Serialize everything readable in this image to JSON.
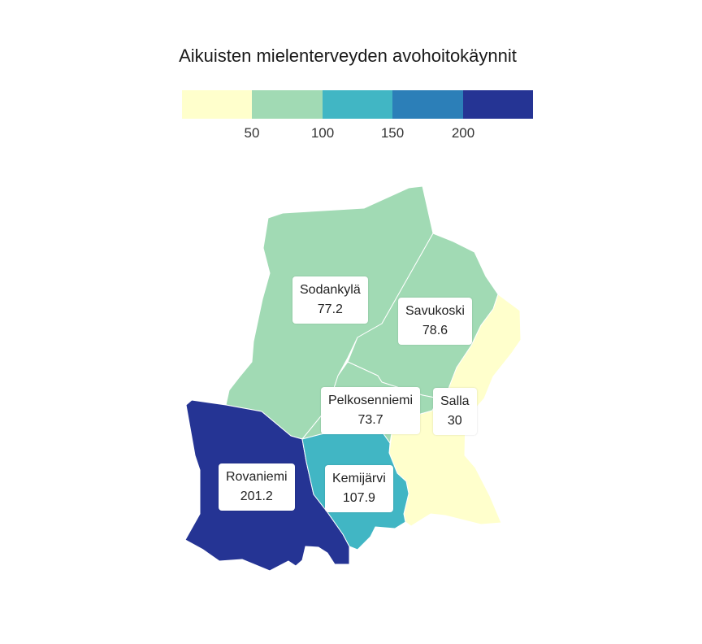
{
  "map": {
    "title": "Aikuisten mielenterveyden avohoitokäynnit",
    "legend": {
      "colors": [
        "#ffffcc",
        "#a1dab4",
        "#41b6c4",
        "#2c7fb8",
        "#253494"
      ],
      "ticks": [
        "50",
        "100",
        "150",
        "200"
      ]
    },
    "regions": [
      {
        "name": "Sodankylä",
        "value": "77.2",
        "color": "#a1dab4"
      },
      {
        "name": "Savukoski",
        "value": "78.6",
        "color": "#a1dab4"
      },
      {
        "name": "Pelkosenniemi",
        "value": "73.7",
        "color": "#a1dab4"
      },
      {
        "name": "Salla",
        "value": "30",
        "color": "#ffffcc"
      },
      {
        "name": "Rovaniemi",
        "value": "201.2",
        "color": "#253494"
      },
      {
        "name": "Kemijärvi",
        "value": "107.9",
        "color": "#41b6c4"
      }
    ]
  }
}
